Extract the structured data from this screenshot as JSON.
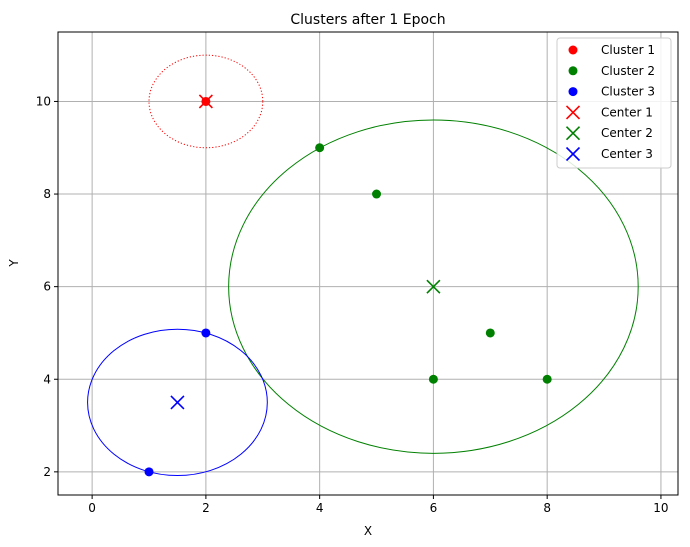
{
  "chart_data": {
    "type": "scatter",
    "title": "Clusters after 1 Epoch",
    "xlabel": "X",
    "ylabel": "Y",
    "xlim": [
      -0.6,
      10.3
    ],
    "ylim": [
      1.5,
      11.5
    ],
    "xticks": [
      0,
      2,
      4,
      6,
      8,
      10
    ],
    "yticks": [
      2,
      4,
      6,
      8,
      10
    ],
    "grid": true,
    "legend_position": "top-right",
    "series": [
      {
        "name": "Cluster 1",
        "kind": "points",
        "color": "#ff0000",
        "points": [
          [
            2,
            10
          ]
        ]
      },
      {
        "name": "Cluster 2",
        "kind": "points",
        "color": "#008000",
        "points": [
          [
            4,
            9
          ],
          [
            5,
            8
          ],
          [
            6,
            4
          ],
          [
            7,
            5
          ],
          [
            8,
            4
          ]
        ]
      },
      {
        "name": "Cluster 3",
        "kind": "points",
        "color": "#0000ff",
        "points": [
          [
            1,
            2
          ],
          [
            2,
            5
          ]
        ]
      },
      {
        "name": "Center 1",
        "kind": "center",
        "color": "#ff0000",
        "points": [
          [
            2,
            10
          ]
        ]
      },
      {
        "name": "Center 2",
        "kind": "center",
        "color": "#008000",
        "points": [
          [
            6,
            6
          ]
        ]
      },
      {
        "name": "Center 3",
        "kind": "center",
        "color": "#0000ff",
        "points": [
          [
            1.5,
            3.5
          ]
        ]
      }
    ],
    "circles": [
      {
        "cx": 2,
        "cy": 10,
        "r": 1,
        "color": "#ff0000",
        "style": "dotted"
      },
      {
        "cx": 6,
        "cy": 6,
        "r": 3.6,
        "color": "#008000",
        "style": "solid"
      },
      {
        "cx": 1.5,
        "cy": 3.5,
        "r": 1.58,
        "color": "#0000ff",
        "style": "solid"
      }
    ]
  }
}
